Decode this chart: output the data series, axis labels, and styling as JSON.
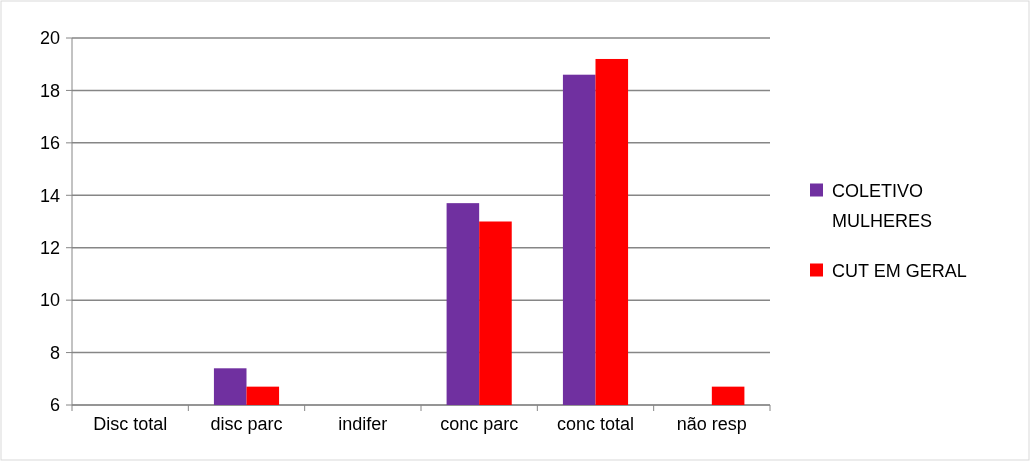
{
  "chart_data": {
    "type": "bar",
    "categories": [
      "Disc total",
      "disc parc",
      "indifer",
      "conc parc",
      "conc total",
      "não resp"
    ],
    "series": [
      {
        "name": "COLETIVO MULHERES",
        "color": "#7030a0",
        "values": [
          null,
          7.4,
          null,
          13.7,
          18.6,
          null
        ]
      },
      {
        "name": "CUT EM GERAL",
        "color": "#ff0000",
        "values": [
          null,
          6.7,
          null,
          13.0,
          19.2,
          6.7
        ]
      }
    ],
    "ylim": [
      6,
      20
    ],
    "yticks": [
      6,
      8,
      10,
      12,
      14,
      16,
      18,
      20
    ],
    "grid": "y",
    "legend": "right"
  }
}
